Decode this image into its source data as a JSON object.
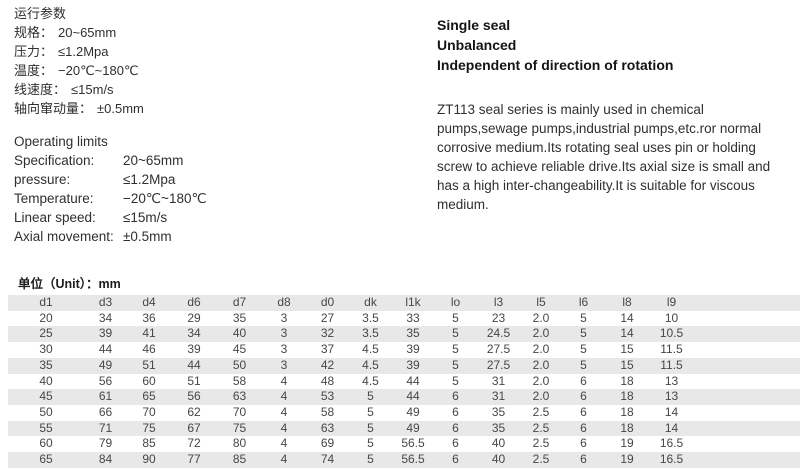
{
  "params_cn": {
    "title": "运行参数",
    "items": [
      {
        "label": "规格：",
        "value": "20~65mm"
      },
      {
        "label": "压力：",
        "value": "≤1.2Mpa"
      },
      {
        "label": "温度：",
        "value": "−20℃~180℃"
      },
      {
        "label": "线速度：",
        "value": "≤15m/s"
      },
      {
        "label": "轴向窜动量：",
        "value": "±0.5mm"
      }
    ]
  },
  "params_en": {
    "title": "Operating limits",
    "items": [
      {
        "label": "Specification:",
        "value": "20~65mm"
      },
      {
        "label": "pressure:",
        "value": "≤1.2Mpa"
      },
      {
        "label": "Temperature:",
        "value": "−20℃~180℃"
      },
      {
        "label": "Linear speed:",
        "value": "≤15m/s"
      },
      {
        "label": "Axial movement:",
        "value": "±0.5mm"
      }
    ]
  },
  "features": [
    "Single seal",
    "Unbalanced",
    "Independent of direction of rotation"
  ],
  "description": "ZT113 seal series is mainly used in chemical pumps,sewage pumps,industrial pumps,etc.ror normal corrosive medium.Its rotating seal uses pin or holding screw to achieve reliable drive.Its axial size is small and has a high inter-changeability.It is suitable for viscous medium.",
  "table": {
    "unit_label": "单位（Unit）：mm",
    "columns": [
      "d1",
      "d3",
      "d4",
      "d6",
      "d7",
      "d8",
      "d0",
      "dk",
      "l1k",
      "lo",
      "l3",
      "l5",
      "l6",
      "l8",
      "l9"
    ],
    "rows": [
      [
        "20",
        "34",
        "36",
        "29",
        "35",
        "3",
        "27",
        "3.5",
        "33",
        "5",
        "23",
        "2.0",
        "5",
        "14",
        "10"
      ],
      [
        "25",
        "39",
        "41",
        "34",
        "40",
        "3",
        "32",
        "3.5",
        "35",
        "5",
        "24.5",
        "2.0",
        "5",
        "14",
        "10.5"
      ],
      [
        "30",
        "44",
        "46",
        "39",
        "45",
        "3",
        "37",
        "4.5",
        "39",
        "5",
        "27.5",
        "2.0",
        "5",
        "15",
        "11.5"
      ],
      [
        "35",
        "49",
        "51",
        "44",
        "50",
        "3",
        "42",
        "4.5",
        "39",
        "5",
        "27.5",
        "2.0",
        "5",
        "15",
        "11.5"
      ],
      [
        "40",
        "56",
        "60",
        "51",
        "58",
        "4",
        "48",
        "4.5",
        "44",
        "5",
        "31",
        "2.0",
        "6",
        "18",
        "13"
      ],
      [
        "45",
        "61",
        "65",
        "56",
        "63",
        "4",
        "53",
        "5",
        "44",
        "6",
        "31",
        "2.0",
        "6",
        "18",
        "13"
      ],
      [
        "50",
        "66",
        "70",
        "62",
        "70",
        "4",
        "58",
        "5",
        "49",
        "6",
        "35",
        "2.5",
        "6",
        "18",
        "14"
      ],
      [
        "55",
        "71",
        "75",
        "67",
        "75",
        "4",
        "63",
        "5",
        "49",
        "6",
        "35",
        "2.5",
        "6",
        "18",
        "14"
      ],
      [
        "60",
        "79",
        "85",
        "72",
        "80",
        "4",
        "69",
        "5",
        "56.5",
        "6",
        "40",
        "2.5",
        "6",
        "19",
        "16.5"
      ],
      [
        "65",
        "84",
        "90",
        "77",
        "85",
        "4",
        "74",
        "5",
        "56.5",
        "6",
        "40",
        "2.5",
        "6",
        "19",
        "16.5"
      ]
    ]
  },
  "colors": {
    "stripe": "#e8e8e8",
    "text": "#2f2f2f",
    "table_text": "#474747"
  }
}
